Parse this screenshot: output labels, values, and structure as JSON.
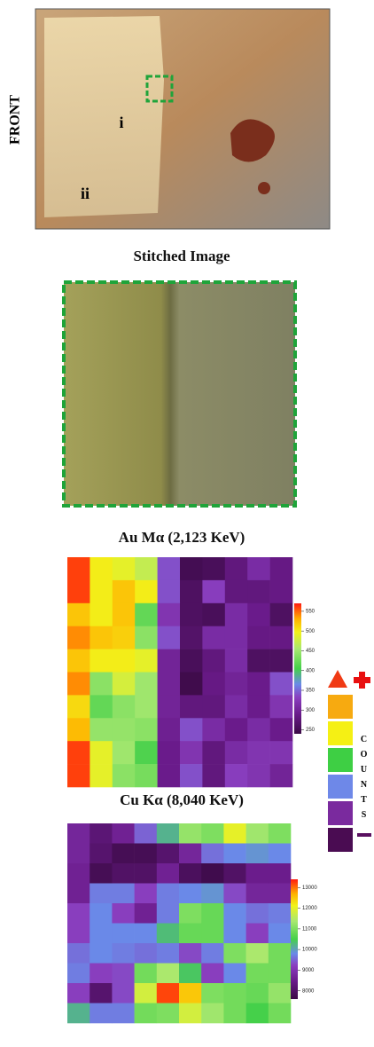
{
  "front_photo": {
    "side_label": "FRONT",
    "region_labels": [
      "i",
      "ii"
    ]
  },
  "stitched": {
    "title": "Stitched Image"
  },
  "maps": [
    {
      "title": "Au Mα (2,123 KeV)",
      "range": [
        240,
        570
      ],
      "ticks": [
        550,
        500,
        450,
        400,
        350,
        300,
        250
      ],
      "values": [
        [
          560,
          500,
          490,
          470,
          340,
          250,
          255,
          280,
          310,
          285
        ],
        [
          560,
          500,
          520,
          500,
          340,
          260,
          330,
          280,
          280,
          285
        ],
        [
          520,
          500,
          520,
          420,
          320,
          260,
          255,
          310,
          290,
          260
        ],
        [
          540,
          520,
          515,
          440,
          340,
          265,
          310,
          310,
          285,
          285
        ],
        [
          520,
          500,
          500,
          490,
          300,
          255,
          280,
          310,
          260,
          260
        ],
        [
          540,
          440,
          480,
          450,
          300,
          245,
          285,
          300,
          290,
          340
        ],
        [
          510,
          420,
          440,
          450,
          300,
          280,
          280,
          310,
          290,
          320
        ],
        [
          525,
          445,
          445,
          440,
          295,
          340,
          310,
          290,
          310,
          290
        ],
        [
          560,
          490,
          450,
          410,
          290,
          320,
          280,
          310,
          320,
          320
        ],
        [
          560,
          490,
          440,
          430,
          290,
          340,
          280,
          330,
          320,
          300
        ]
      ]
    },
    {
      "title": "Cu Kα (8,040 KeV)",
      "range": [
        7600,
        13400
      ],
      "ticks": [
        13000,
        12000,
        11000,
        10000,
        9000,
        8000
      ],
      "values": [
        [
          8700,
          8200,
          8600,
          9500,
          10200,
          11200,
          11000,
          12000,
          11300,
          11000
        ],
        [
          8700,
          8100,
          7800,
          7800,
          8100,
          8700,
          9600,
          9800,
          9900,
          9800
        ],
        [
          8600,
          7800,
          8000,
          8000,
          8600,
          7900,
          7700,
          8000,
          8500,
          8500
        ],
        [
          8600,
          9700,
          9700,
          9200,
          9700,
          9800,
          9900,
          9300,
          8700,
          8700
        ],
        [
          9200,
          9800,
          9200,
          8600,
          9700,
          11000,
          10800,
          9800,
          9600,
          9700
        ],
        [
          9200,
          9800,
          9800,
          9800,
          10300,
          10800,
          10800,
          9800,
          9200,
          9800
        ],
        [
          9600,
          9800,
          9700,
          9600,
          9700,
          9300,
          9700,
          11000,
          11400,
          10900
        ],
        [
          9700,
          9200,
          9300,
          10900,
          11400,
          10400,
          9200,
          9800,
          10900,
          10900
        ],
        [
          9200,
          8100,
          9300,
          11800,
          13200,
          12500,
          11000,
          10900,
          10800,
          11200
        ],
        [
          10200,
          9700,
          9700,
          10900,
          11000,
          11800,
          11300,
          10900,
          10500,
          10900
        ]
      ]
    }
  ],
  "legend": {
    "label": "COUNTS"
  }
}
